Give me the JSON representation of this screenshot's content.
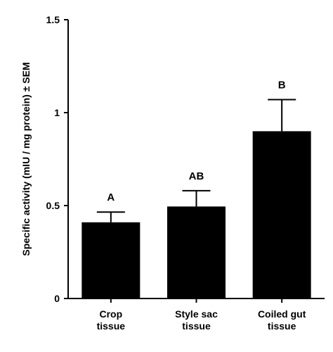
{
  "chart_data": {
    "type": "bar",
    "categories": [
      [
        "Crop",
        "tissue"
      ],
      [
        "Style sac",
        "tissue"
      ],
      [
        "Coiled gut",
        "tissue"
      ]
    ],
    "values": [
      0.41,
      0.495,
      0.9
    ],
    "error_upper": [
      0.055,
      0.085,
      0.17
    ],
    "annotations": [
      "A",
      "AB",
      "B"
    ],
    "ylabel": "Specific activity (mIU / mg protein) ± SEM",
    "xlabel": "",
    "ylim": [
      0,
      1.5
    ],
    "yticks": [
      0,
      0.5,
      1,
      1.5
    ],
    "ytick_labels": [
      "0",
      "0.5",
      "1",
      "1.5"
    ],
    "grid": false,
    "bar_color": "#000000"
  }
}
